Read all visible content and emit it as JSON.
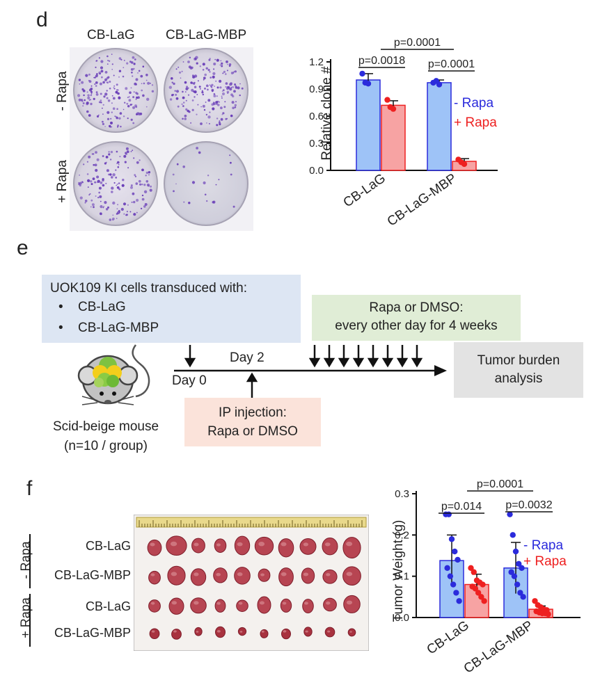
{
  "panel_d": {
    "letter": "d",
    "col_labels": [
      "CB-LaG",
      "CB-LaG-MBP"
    ],
    "row_labels": [
      "- Rapa",
      "+ Rapa"
    ],
    "chart_data": {
      "type": "bar",
      "ylabel": "Relative clone #",
      "categories": [
        "CB-LaG",
        "CB-LaG-MBP"
      ],
      "ylim": [
        0,
        1.2
      ],
      "yticks": [
        "0.0",
        "0.3",
        "0.6",
        "0.9",
        "1.2"
      ],
      "series": [
        {
          "name": "- Rapa",
          "color": "#2b2bdc",
          "fill": "#9ec3f7",
          "values": [
            1.0,
            0.97
          ],
          "errors": [
            0.07,
            0.03
          ],
          "points": [
            [
              1.07,
              0.97,
              0.96
            ],
            [
              0.97,
              0.99,
              0.95
            ]
          ]
        },
        {
          "name": "+ Rapa",
          "color": "#ee2020",
          "fill": "#f7a3a3",
          "values": [
            0.72,
            0.1
          ],
          "errors": [
            0.05,
            0.03
          ],
          "points": [
            [
              0.78,
              0.7,
              0.68
            ],
            [
              0.12,
              0.09,
              0.07
            ]
          ]
        }
      ],
      "significance": [
        {
          "label": "p=0.0018"
        },
        {
          "label": "p=0.0001"
        },
        {
          "label": "p=0.0001"
        }
      ],
      "legend": [
        "- Rapa",
        "+ Rapa"
      ]
    }
  },
  "panel_e": {
    "letter": "e",
    "cells_title": "UOK109 KI cells transduced with:",
    "cells_items": [
      "CB-LaG",
      "CB-LaG-MBP"
    ],
    "treatment_line1": "Rapa or DMSO:",
    "treatment_line2": "every other day for 4 weeks",
    "day0": "Day 0",
    "day2": "Day 2",
    "injection_line1": "IP injection:",
    "injection_line2": "Rapa or DMSO",
    "tumor_line1": "Tumor burden",
    "tumor_line2": "analysis",
    "mouse_line1": "Scid-beige mouse",
    "mouse_line2": "(n=10 / group)",
    "colors": {
      "blue_box": "#dde6f3",
      "green_box": "#e0edd6",
      "pink_box": "#fbe3da",
      "gray_box": "#e3e3e3"
    }
  },
  "panel_f": {
    "letter": "f",
    "row_labels": [
      "CB-LaG",
      "CB-LaG-MBP",
      "CB-LaG",
      "CB-LaG-MBP"
    ],
    "group_labels": [
      "- Rapa",
      "+ Rapa"
    ],
    "chart_data": {
      "type": "bar",
      "ylabel": "Tumor Weight (g)",
      "categories": [
        "CB-LaG",
        "CB-LaG-MBP"
      ],
      "ylim": [
        0,
        0.3
      ],
      "yticks": [
        "0.0",
        "0.1",
        "0.2",
        "0.3"
      ],
      "series": [
        {
          "name": "- Rapa",
          "color": "#2b2bdc",
          "fill": "#9ec3f7",
          "values": [
            0.138,
            0.12
          ],
          "errors": [
            0.062,
            0.062
          ],
          "points": [
            [
              0.25,
              0.25,
              0.19,
              0.16,
              0.14,
              0.12,
              0.1,
              0.08,
              0.06,
              0.04
            ],
            [
              0.25,
              0.2,
              0.16,
              0.13,
              0.12,
              0.11,
              0.1,
              0.08,
              0.06,
              0.05
            ]
          ]
        },
        {
          "name": "+ Rapa",
          "color": "#ee2020",
          "fill": "#f7a3a3",
          "values": [
            0.08,
            0.02
          ],
          "errors": [
            0.025,
            0.008
          ],
          "points": [
            [
              0.12,
              0.11,
              0.09,
              0.085,
              0.08,
              0.075,
              0.07,
              0.06,
              0.05,
              0.04
            ],
            [
              0.04,
              0.03,
              0.025,
              0.02,
              0.018,
              0.015,
              0.012,
              0.01,
              0.01,
              0.008
            ]
          ]
        }
      ],
      "significance": [
        {
          "label": "p=0.014"
        },
        {
          "label": "p=0.0001"
        },
        {
          "label": "p=0.0032"
        }
      ],
      "legend": [
        "- Rapa",
        "+ Rapa"
      ]
    }
  }
}
